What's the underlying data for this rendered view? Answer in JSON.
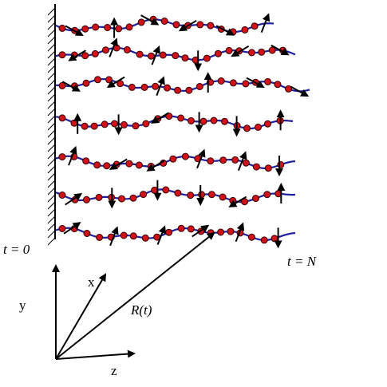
{
  "labels": {
    "t_start": "t = 0",
    "t_end": "t = N",
    "axis_y": "y",
    "axis_x": "x",
    "axis_z": "z",
    "vector": "R(t)"
  }
}
